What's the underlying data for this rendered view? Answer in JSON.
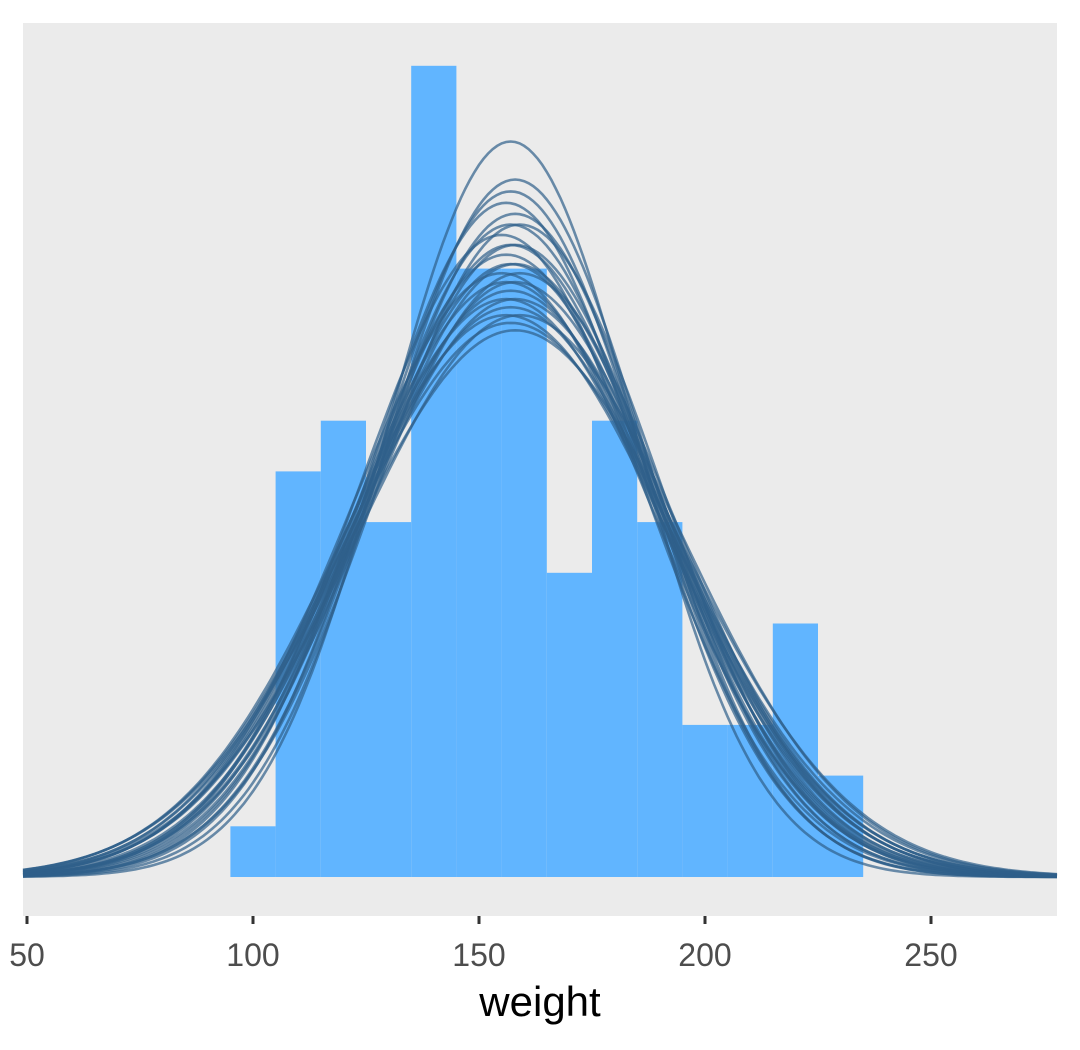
{
  "chart_data": {
    "type": "histogram",
    "xlabel": "weight",
    "ylabel": "",
    "xlim": [
      50,
      278
    ],
    "grid": false,
    "x_ticks": [
      50,
      100,
      150,
      200,
      250
    ],
    "histogram": {
      "bin_width": 10,
      "bins": [
        {
          "start": 95,
          "end": 105,
          "count": 1
        },
        {
          "start": 105,
          "end": 115,
          "count": 8
        },
        {
          "start": 115,
          "end": 125,
          "count": 9
        },
        {
          "start": 125,
          "end": 135,
          "count": 7
        },
        {
          "start": 135,
          "end": 145,
          "count": 16
        },
        {
          "start": 145,
          "end": 155,
          "count": 12
        },
        {
          "start": 155,
          "end": 165,
          "count": 12
        },
        {
          "start": 165,
          "end": 175,
          "count": 6
        },
        {
          "start": 175,
          "end": 185,
          "count": 9
        },
        {
          "start": 185,
          "end": 195,
          "count": 7
        },
        {
          "start": 195,
          "end": 205,
          "count": 3
        },
        {
          "start": 205,
          "end": 215,
          "count": 3
        },
        {
          "start": 215,
          "end": 225,
          "count": 5
        },
        {
          "start": 225,
          "end": 235,
          "count": 2
        }
      ]
    },
    "density_curves": [
      {
        "mean": 157,
        "sd": 27.5
      },
      {
        "mean": 158,
        "sd": 29.0
      },
      {
        "mean": 157,
        "sd": 29.5
      },
      {
        "mean": 156,
        "sd": 30.0
      },
      {
        "mean": 158,
        "sd": 30.5
      },
      {
        "mean": 157,
        "sd": 31.0
      },
      {
        "mean": 159,
        "sd": 31.0
      },
      {
        "mean": 155,
        "sd": 31.5
      },
      {
        "mean": 157,
        "sd": 32.0
      },
      {
        "mean": 158,
        "sd": 32.0
      },
      {
        "mean": 156,
        "sd": 32.5
      },
      {
        "mean": 158,
        "sd": 33.0
      },
      {
        "mean": 157,
        "sd": 33.0
      },
      {
        "mean": 155,
        "sd": 33.5
      },
      {
        "mean": 159,
        "sd": 33.5
      },
      {
        "mean": 156,
        "sd": 34.0
      },
      {
        "mean": 158,
        "sd": 34.0
      },
      {
        "mean": 157,
        "sd": 34.5
      },
      {
        "mean": 156,
        "sd": 35.0
      },
      {
        "mean": 158,
        "sd": 35.0
      },
      {
        "mean": 157,
        "sd": 35.5
      },
      {
        "mean": 159,
        "sd": 36.0
      },
      {
        "mean": 156,
        "sd": 36.0
      },
      {
        "mean": 157,
        "sd": 36.5
      },
      {
        "mean": 158,
        "sd": 37.0
      }
    ],
    "colors": {
      "panel_background": "#ebebeb",
      "bars": "#61b5ff",
      "curves": "#2f5f8a"
    }
  }
}
